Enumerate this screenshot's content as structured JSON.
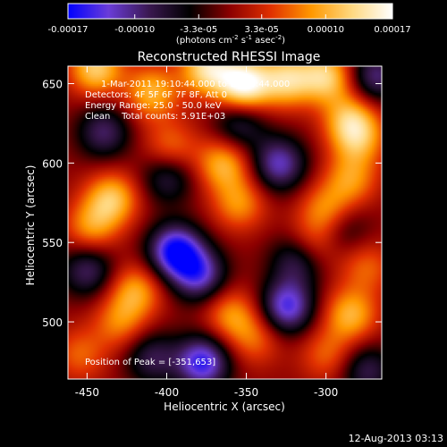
{
  "chart_data": {
    "type": "heatmap",
    "title": "Reconstructed RHESSI Image",
    "xlabel": "Heliocentric X (arcsec)",
    "ylabel": "Heliocentric Y (arcsec)",
    "xlim": [
      -462,
      -265
    ],
    "ylim": [
      464,
      661
    ],
    "x_ticks": [
      -450,
      -400,
      -350,
      -300
    ],
    "y_ticks": [
      500,
      550,
      600,
      650
    ],
    "x_tick_labels": [
      "-450",
      "-400",
      "-350",
      "-300"
    ],
    "y_tick_labels": [
      "500",
      "550",
      "600",
      "650"
    ],
    "colorbar": {
      "range": [
        -0.00017,
        0.00017
      ],
      "ticks": [
        -0.00017,
        -0.0001,
        -3.3e-05,
        3.3e-05,
        0.0001,
        0.00017
      ],
      "tick_labels": [
        "-0.00017",
        "-0.00010",
        "-3.3e-05",
        "3.3e-05",
        "0.00010",
        "0.00017"
      ],
      "units": {
        "base": "(photons cm",
        "exp1": "-2",
        "mid": " s",
        "exp2": "-1",
        "mid2": " asec",
        "exp3": "-2",
        "close": ")"
      },
      "colors": [
        "#0000ff",
        "#6a3cd8",
        "#3a1850",
        "#000000",
        "#8c0000",
        "#e03000",
        "#ff9800",
        "#ffd880",
        "#ffffff"
      ]
    },
    "annotations": [
      "1-Mar-2011 19:10:44.000 to 19:13:44.000",
      "Detectors: 4F 5F 6F 7F 8F, Att 0",
      "Energy Range: 25.0 - 50.0 keV",
      "Clean    Total counts: 5.91E+03"
    ],
    "peak_label": "Position of Peak = [-351,653]",
    "peak": [
      -351,
      653
    ],
    "sources": [
      {
        "x": -352,
        "y": 650,
        "value": 0.00017
      },
      {
        "x": -375,
        "y": 660,
        "value": 0.00013
      },
      {
        "x": -325,
        "y": 653,
        "value": 0.00012
      },
      {
        "x": -300,
        "y": 655,
        "value": 0.00012
      },
      {
        "x": -445,
        "y": 660,
        "value": 0.00012
      },
      {
        "x": -410,
        "y": 645,
        "value": 0.0001
      },
      {
        "x": -285,
        "y": 628,
        "value": 0.0001
      },
      {
        "x": -280,
        "y": 615,
        "value": 8e-05
      },
      {
        "x": -435,
        "y": 578,
        "value": 0.00011
      },
      {
        "x": -448,
        "y": 560,
        "value": 8e-05
      },
      {
        "x": -365,
        "y": 600,
        "value": 0.0001
      },
      {
        "x": -355,
        "y": 575,
        "value": 8e-05
      },
      {
        "x": -398,
        "y": 610,
        "value": 7e-05
      },
      {
        "x": -300,
        "y": 570,
        "value": 9e-05
      },
      {
        "x": -285,
        "y": 590,
        "value": 8e-05
      },
      {
        "x": -310,
        "y": 548,
        "value": 7e-05
      },
      {
        "x": -275,
        "y": 535,
        "value": 6e-05
      },
      {
        "x": -420,
        "y": 520,
        "value": 9e-05
      },
      {
        "x": -430,
        "y": 500,
        "value": 7e-05
      },
      {
        "x": -360,
        "y": 505,
        "value": 8e-05
      },
      {
        "x": -345,
        "y": 490,
        "value": 6e-05
      },
      {
        "x": -285,
        "y": 505,
        "value": 0.0001
      },
      {
        "x": -300,
        "y": 480,
        "value": 6e-05
      },
      {
        "x": -455,
        "y": 480,
        "value": 6e-05
      },
      {
        "x": -395,
        "y": 545,
        "value": -0.00017
      },
      {
        "x": -380,
        "y": 530,
        "value": -0.00012
      },
      {
        "x": -378,
        "y": 475,
        "value": -0.00015
      },
      {
        "x": -325,
        "y": 510,
        "value": -0.00014
      },
      {
        "x": -318,
        "y": 540,
        "value": -0.0001
      },
      {
        "x": -330,
        "y": 600,
        "value": -0.00012
      },
      {
        "x": -355,
        "y": 625,
        "value": -8e-05
      },
      {
        "x": -400,
        "y": 592,
        "value": -8e-05
      },
      {
        "x": -440,
        "y": 620,
        "value": -9e-05
      },
      {
        "x": -450,
        "y": 533,
        "value": -9e-05
      },
      {
        "x": -270,
        "y": 655,
        "value": -0.0001
      },
      {
        "x": -275,
        "y": 470,
        "value": -8e-05
      },
      {
        "x": -410,
        "y": 478,
        "value": -8e-05
      },
      {
        "x": -290,
        "y": 560,
        "value": -6e-05
      }
    ]
  },
  "footer": {
    "date": "12-Aug-2013 03:13"
  }
}
